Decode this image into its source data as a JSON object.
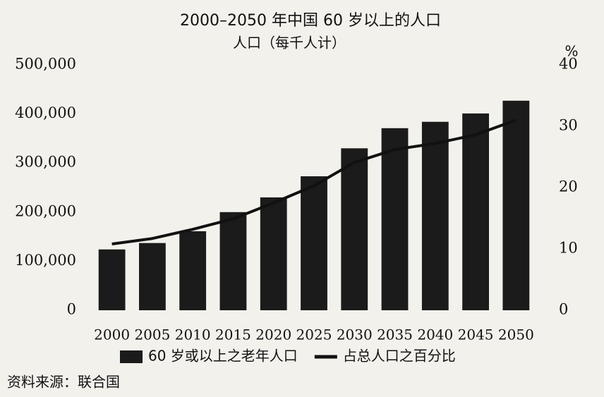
{
  "chart_data": {
    "type": "bar-line",
    "title": "2000–2050 年中国 60 岁以上的人口",
    "subtitle": "人口（每千人计）",
    "y2_label": "%",
    "categories": [
      "2000",
      "2005",
      "2010",
      "2015",
      "2020",
      "2025",
      "2030",
      "2035",
      "2040",
      "2045",
      "2050"
    ],
    "series": [
      {
        "name": "60 岁或以上之老年人口",
        "type": "bar",
        "axis": "y",
        "color": "#1b1b1b",
        "values": [
          124000,
          137000,
          161000,
          200000,
          230000,
          273000,
          330000,
          371000,
          384000,
          401000,
          427000
        ]
      },
      {
        "name": "占总人口之百分比",
        "type": "line",
        "axis": "y2",
        "color": "#111111",
        "values": [
          10.8,
          11.7,
          13.2,
          14.9,
          17.5,
          20.3,
          24.1,
          26.2,
          27.2,
          28.6,
          31.0
        ]
      }
    ],
    "ylim": [
      0,
      500000
    ],
    "yticks": [
      0,
      {
        "value": 100000,
        "label": "100,000"
      },
      {
        "value": 200000,
        "label": "200,000"
      },
      {
        "value": 300000,
        "label": "300,000"
      },
      {
        "value": 400000,
        "label": "400,000"
      },
      {
        "value": 500000,
        "label": "500,000"
      }
    ],
    "y2lim": [
      0,
      40
    ],
    "y2ticks": [
      0,
      10,
      20,
      30,
      40
    ],
    "grid": false,
    "source": "资料来源：联合国"
  }
}
